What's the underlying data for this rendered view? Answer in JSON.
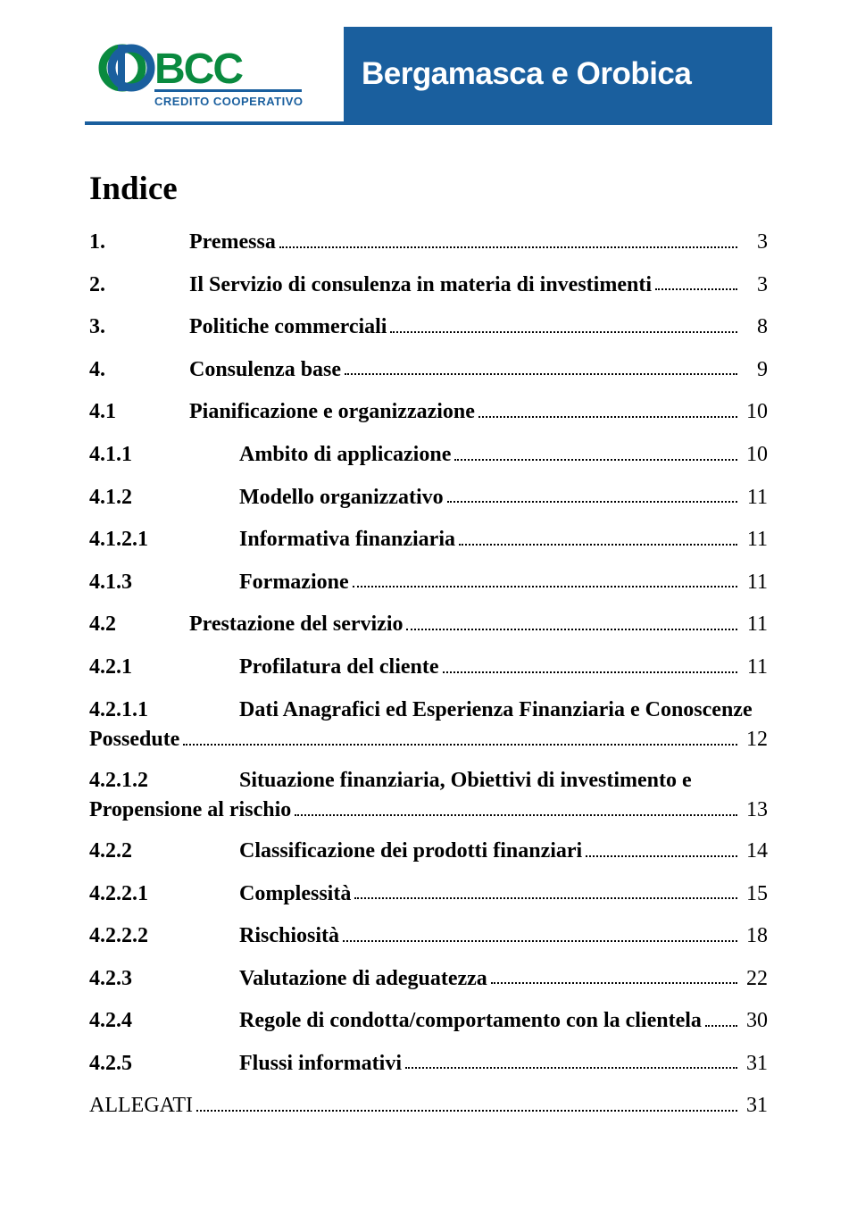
{
  "brand": {
    "logo_main": "BCC",
    "logo_sub": "CREDITO COOPERATIVO",
    "banner_text": "Bergamasca e Orobica",
    "logo_green": "#0a8a3f",
    "logo_blue": "#1a5f9e",
    "banner_bg": "#1a5f9e",
    "banner_text_color": "#ffffff"
  },
  "toc": {
    "title": "Indice",
    "items": [
      {
        "num": "1.",
        "label": "Premessa",
        "page": "3",
        "level": 1,
        "bold": true
      },
      {
        "num": "2.",
        "label": "Il Servizio di consulenza in materia di investimenti",
        "page": "3",
        "level": 1,
        "bold": true
      },
      {
        "num": "3.",
        "label": "Politiche commerciali",
        "page": "8",
        "level": 1,
        "bold": true
      },
      {
        "num": "4.",
        "label": "Consulenza base",
        "page": "9",
        "level": 1,
        "bold": true
      },
      {
        "num": "4.1",
        "label": "Pianificazione e organizzazione",
        "page": "10",
        "level": 2,
        "bold": true
      },
      {
        "num": "4.1.1",
        "label": "Ambito di applicazione",
        "page": "10",
        "level": 3,
        "bold": true
      },
      {
        "num": "4.1.2",
        "label": "Modello organizzativo",
        "page": "11",
        "level": 3,
        "bold": true
      },
      {
        "num": "4.1.2.1",
        "label": "Informativa finanziaria",
        "page": "11",
        "level": 3,
        "bold": true
      },
      {
        "num": "4.1.3",
        "label": "Formazione",
        "page": "11",
        "level": 3,
        "bold": true
      },
      {
        "num": "4.2",
        "label": "Prestazione del servizio",
        "page": "11",
        "level": 2,
        "bold": true
      },
      {
        "num": "4.2.1",
        "label": "Profilatura del cliente",
        "page": "11",
        "level": 3,
        "bold": true
      },
      {
        "num": "4.2.1.1",
        "label_line1": "Dati Anagrafici ed Esperienza Finanziaria e Conoscenze",
        "label_line2": "Possedute",
        "page": "12",
        "level": 3,
        "bold": true,
        "wrap": true
      },
      {
        "num": "4.2.1.2",
        "label_line1": "Situazione finanziaria, Obiettivi di investimento e",
        "label_line2": "Propensione al rischio",
        "page": "13",
        "level": 3,
        "bold": true,
        "wrap": true
      },
      {
        "num": "4.2.2",
        "label": "Classificazione dei prodotti finanziari",
        "page": "14",
        "level": 3,
        "bold": true
      },
      {
        "num": "4.2.2.1",
        "label": "Complessità",
        "page": "15",
        "level": 3,
        "bold": true
      },
      {
        "num": "4.2.2.2",
        "label": "Rischiosità",
        "page": "18",
        "level": 3,
        "bold": true
      },
      {
        "num": "4.2.3",
        "label": "Valutazione di adeguatezza",
        "page": "22",
        "level": 3,
        "bold": true
      },
      {
        "num": "4.2.4",
        "label": "Regole di condotta/comportamento con la clientela",
        "page": "30",
        "level": 3,
        "bold": true
      },
      {
        "num": "4.2.5",
        "label": "Flussi informativi",
        "page": "31",
        "level": 3,
        "bold": true
      },
      {
        "num": "",
        "label": "ALLEGATI",
        "page": "31",
        "level": 0,
        "bold": false,
        "plain": true
      }
    ]
  },
  "footer": {
    "page_number": ""
  },
  "colors": {
    "text": "#000000",
    "background": "#ffffff",
    "dots": "#000000"
  },
  "typography": {
    "title_size_pt": 28,
    "body_size_pt": 18,
    "font_family": "Book Antiqua, Georgia, serif"
  }
}
